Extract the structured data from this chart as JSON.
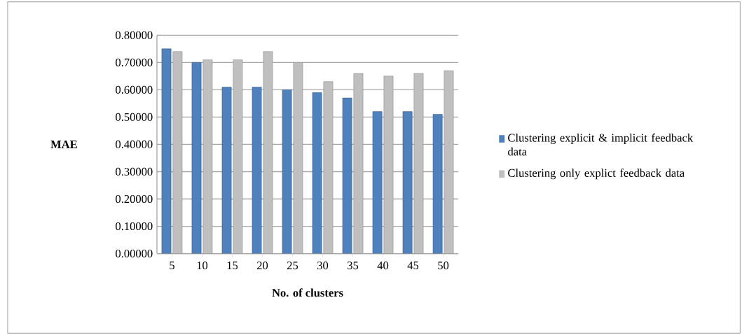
{
  "chart_data": {
    "type": "bar",
    "xlabel": "No. of clusters",
    "ylabel": "MAE",
    "categories": [
      "5",
      "10",
      "15",
      "20",
      "25",
      "30",
      "35",
      "40",
      "45",
      "50"
    ],
    "series": [
      {
        "name": "Clustering explicit & implicit feedback data",
        "color": "#4f81bd",
        "values": [
          0.75,
          0.7,
          0.61,
          0.61,
          0.6,
          0.59,
          0.57,
          0.52,
          0.52,
          0.51
        ]
      },
      {
        "name": "Clustering only explict feedback data",
        "color": "#bfbfbf",
        "values": [
          0.74,
          0.71,
          0.71,
          0.74,
          0.7,
          0.63,
          0.66,
          0.65,
          0.66,
          0.67
        ]
      }
    ],
    "ylim": [
      0,
      0.8
    ],
    "yticks": [
      {
        "value": 0,
        "label": "0.00000"
      },
      {
        "value": 0.1,
        "label": "0.10000"
      },
      {
        "value": 0.2,
        "label": "0.20000"
      },
      {
        "value": 0.3,
        "label": "0.30000"
      },
      {
        "value": 0.4,
        "label": "0.40000"
      },
      {
        "value": 0.5,
        "label": "0.50000"
      },
      {
        "value": 0.6,
        "label": "0.60000"
      },
      {
        "value": 0.7,
        "label": "0.70000"
      },
      {
        "value": 0.8,
        "label": "0.80000"
      }
    ],
    "grid": "y",
    "legend": "right"
  }
}
